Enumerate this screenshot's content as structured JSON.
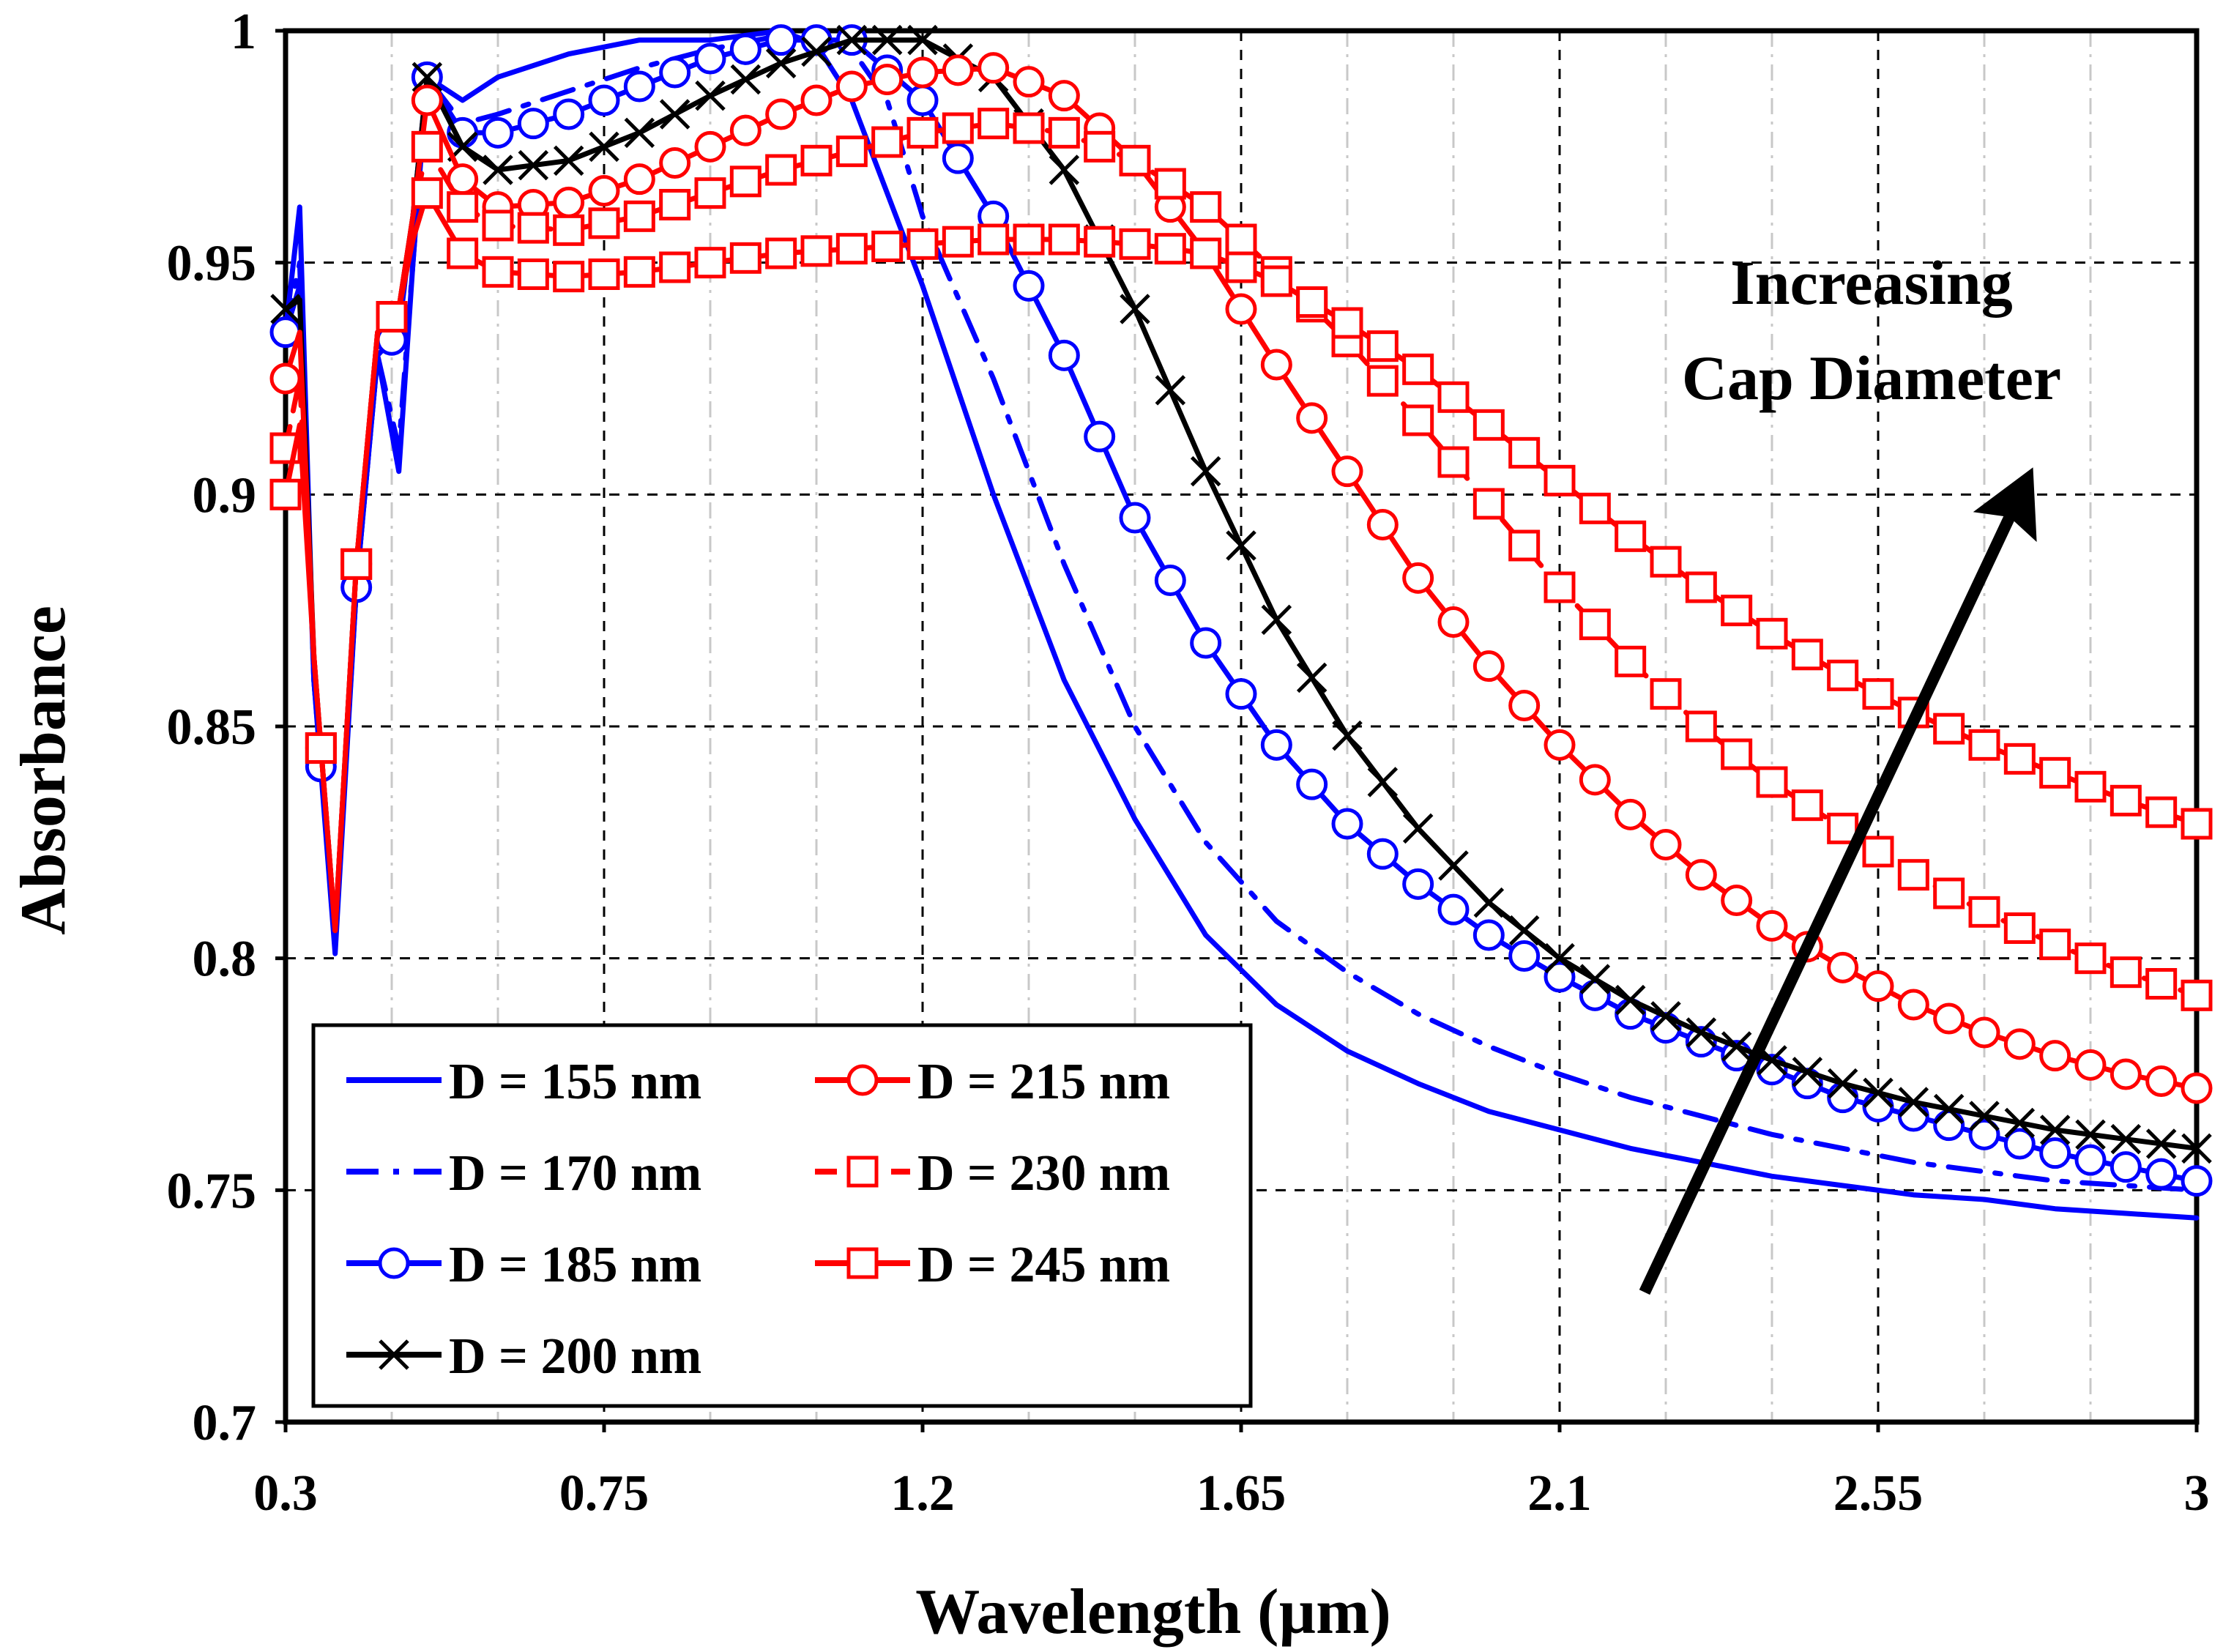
{
  "chart_data": {
    "type": "line",
    "xlabel": "Wavelength (µm)",
    "ylabel": "Absorbance",
    "xlim": [
      0.3,
      3.0
    ],
    "ylim": [
      0.7,
      1.0
    ],
    "xticks": [
      0.3,
      0.75,
      1.2,
      1.65,
      2.1,
      2.55,
      3.0
    ],
    "xtick_labels": [
      "0.3",
      "0.75",
      "1.2",
      "1.65",
      "2.1",
      "2.55",
      "3"
    ],
    "yticks": [
      0.7,
      0.75,
      0.8,
      0.85,
      0.9,
      0.95,
      1.0
    ],
    "ytick_labels": [
      "0.7",
      "0.75",
      "0.8",
      "0.85",
      "0.9",
      "0.95",
      "1"
    ],
    "grid": true,
    "legend_position": "bottom-left",
    "annotation": {
      "lines": [
        "Increasing",
        "Cap Diameter"
      ],
      "arrow_from": [
        2.22,
        0.728
      ],
      "arrow_to": [
        2.76,
        0.903
      ]
    },
    "series": [
      {
        "name": "D = 155 nm",
        "color": "#0000ff",
        "style": "solid",
        "marker": "none",
        "x": [
          0.3,
          0.32,
          0.34,
          0.37,
          0.4,
          0.43,
          0.46,
          0.48,
          0.5,
          0.55,
          0.6,
          0.7,
          0.8,
          0.9,
          1.0,
          1.05,
          1.1,
          1.2,
          1.3,
          1.4,
          1.5,
          1.6,
          1.7,
          1.8,
          1.9,
          2.0,
          2.1,
          2.2,
          2.3,
          2.4,
          2.5,
          2.6,
          2.7,
          2.8,
          2.9,
          3.0
        ],
        "y": [
          0.935,
          0.962,
          0.86,
          0.801,
          0.88,
          0.93,
          0.905,
          0.95,
          0.99,
          0.985,
          0.99,
          0.995,
          0.998,
          0.998,
          1.0,
          0.997,
          0.985,
          0.945,
          0.9,
          0.86,
          0.83,
          0.805,
          0.79,
          0.78,
          0.773,
          0.767,
          0.763,
          0.759,
          0.756,
          0.753,
          0.751,
          0.749,
          0.748,
          0.746,
          0.745,
          0.744
        ]
      },
      {
        "name": "D = 170 nm",
        "color": "#0000ff",
        "style": "dashdot",
        "marker": "none",
        "x": [
          0.3,
          0.32,
          0.34,
          0.37,
          0.4,
          0.43,
          0.46,
          0.48,
          0.5,
          0.55,
          0.6,
          0.7,
          0.8,
          0.9,
          1.0,
          1.1,
          1.15,
          1.2,
          1.3,
          1.4,
          1.5,
          1.6,
          1.7,
          1.8,
          1.9,
          2.0,
          2.1,
          2.2,
          2.3,
          2.4,
          2.5,
          2.6,
          2.7,
          2.8,
          2.9,
          3.0
        ],
        "y": [
          0.935,
          0.95,
          0.86,
          0.803,
          0.88,
          0.93,
          0.91,
          0.95,
          0.99,
          0.98,
          0.982,
          0.987,
          0.992,
          0.996,
          0.999,
          0.996,
          0.985,
          0.96,
          0.925,
          0.885,
          0.85,
          0.825,
          0.808,
          0.797,
          0.788,
          0.781,
          0.775,
          0.77,
          0.766,
          0.762,
          0.759,
          0.756,
          0.754,
          0.752,
          0.751,
          0.75
        ]
      },
      {
        "name": "D = 185 nm",
        "color": "#0000ff",
        "style": "solid",
        "marker": "circle",
        "x": [
          0.3,
          0.32,
          0.34,
          0.37,
          0.4,
          0.43,
          0.46,
          0.48,
          0.5,
          0.55,
          0.6,
          0.7,
          0.8,
          0.9,
          1.0,
          1.1,
          1.2,
          1.3,
          1.4,
          1.5,
          1.6,
          1.7,
          1.8,
          1.9,
          2.0,
          2.1,
          2.2,
          2.3,
          2.4,
          2.5,
          2.6,
          2.7,
          2.8,
          2.9,
          3.0
        ],
        "y": [
          0.935,
          0.945,
          0.86,
          0.804,
          0.88,
          0.93,
          0.935,
          0.96,
          0.99,
          0.978,
          0.978,
          0.982,
          0.988,
          0.994,
          0.998,
          0.998,
          0.985,
          0.96,
          0.93,
          0.895,
          0.868,
          0.846,
          0.829,
          0.816,
          0.805,
          0.796,
          0.788,
          0.782,
          0.776,
          0.77,
          0.766,
          0.762,
          0.758,
          0.755,
          0.752
        ]
      },
      {
        "name": "D = 200 nm",
        "color": "#000000",
        "style": "solid",
        "marker": "x",
        "x": [
          0.3,
          0.32,
          0.34,
          0.37,
          0.4,
          0.43,
          0.46,
          0.48,
          0.5,
          0.55,
          0.6,
          0.7,
          0.8,
          0.9,
          1.0,
          1.1,
          1.2,
          1.3,
          1.4,
          1.5,
          1.6,
          1.7,
          1.8,
          1.9,
          2.0,
          2.1,
          2.2,
          2.3,
          2.4,
          2.5,
          2.6,
          2.7,
          2.8,
          2.9,
          3.0
        ],
        "y": [
          0.94,
          0.942,
          0.865,
          0.806,
          0.885,
          0.935,
          0.94,
          0.96,
          0.99,
          0.975,
          0.97,
          0.972,
          0.978,
          0.986,
          0.993,
          0.998,
          0.998,
          0.99,
          0.97,
          0.94,
          0.905,
          0.873,
          0.848,
          0.828,
          0.812,
          0.8,
          0.791,
          0.784,
          0.778,
          0.773,
          0.769,
          0.766,
          0.763,
          0.761,
          0.759
        ]
      },
      {
        "name": "D = 215 nm",
        "color": "#ff0000",
        "style": "solid",
        "marker": "circle",
        "x": [
          0.3,
          0.32,
          0.34,
          0.37,
          0.4,
          0.43,
          0.46,
          0.48,
          0.5,
          0.55,
          0.6,
          0.7,
          0.8,
          0.9,
          1.0,
          1.1,
          1.2,
          1.3,
          1.4,
          1.5,
          1.6,
          1.7,
          1.8,
          1.9,
          2.0,
          2.1,
          2.2,
          2.3,
          2.4,
          2.5,
          2.6,
          2.7,
          2.8,
          2.9,
          3.0
        ],
        "y": [
          0.925,
          0.935,
          0.865,
          0.806,
          0.885,
          0.935,
          0.94,
          0.96,
          0.985,
          0.968,
          0.962,
          0.963,
          0.968,
          0.975,
          0.982,
          0.988,
          0.991,
          0.992,
          0.986,
          0.972,
          0.952,
          0.928,
          0.905,
          0.882,
          0.863,
          0.846,
          0.831,
          0.818,
          0.807,
          0.798,
          0.79,
          0.784,
          0.779,
          0.775,
          0.772
        ]
      },
      {
        "name": "D = 230 nm",
        "color": "#ff0000",
        "style": "dashed",
        "marker": "square",
        "x": [
          0.3,
          0.32,
          0.34,
          0.37,
          0.4,
          0.43,
          0.46,
          0.48,
          0.5,
          0.55,
          0.6,
          0.7,
          0.8,
          0.9,
          1.0,
          1.1,
          1.2,
          1.3,
          1.4,
          1.5,
          1.6,
          1.7,
          1.8,
          1.9,
          2.0,
          2.1,
          2.2,
          2.3,
          2.4,
          2.5,
          2.6,
          2.7,
          2.8,
          2.9,
          3.0
        ],
        "y": [
          0.91,
          0.925,
          0.865,
          0.806,
          0.885,
          0.935,
          0.94,
          0.96,
          0.975,
          0.962,
          0.958,
          0.957,
          0.96,
          0.965,
          0.97,
          0.974,
          0.978,
          0.98,
          0.978,
          0.972,
          0.962,
          0.948,
          0.933,
          0.916,
          0.898,
          0.88,
          0.864,
          0.85,
          0.838,
          0.828,
          0.818,
          0.81,
          0.803,
          0.797,
          0.792
        ]
      },
      {
        "name": "D = 245 nm",
        "color": "#ff0000",
        "style": "solid",
        "marker": "square",
        "x": [
          0.3,
          0.32,
          0.34,
          0.37,
          0.4,
          0.43,
          0.46,
          0.48,
          0.5,
          0.55,
          0.6,
          0.7,
          0.8,
          0.9,
          1.0,
          1.1,
          1.2,
          1.3,
          1.4,
          1.5,
          1.6,
          1.7,
          1.8,
          1.9,
          2.0,
          2.1,
          2.2,
          2.3,
          2.4,
          2.5,
          2.6,
          2.7,
          2.8,
          2.9,
          3.0
        ],
        "y": [
          0.9,
          0.915,
          0.865,
          0.806,
          0.885,
          0.935,
          0.94,
          0.955,
          0.965,
          0.952,
          0.948,
          0.947,
          0.948,
          0.95,
          0.952,
          0.953,
          0.954,
          0.955,
          0.955,
          0.954,
          0.952,
          0.946,
          0.937,
          0.927,
          0.915,
          0.903,
          0.891,
          0.88,
          0.87,
          0.861,
          0.853,
          0.846,
          0.84,
          0.834,
          0.829
        ]
      }
    ]
  }
}
